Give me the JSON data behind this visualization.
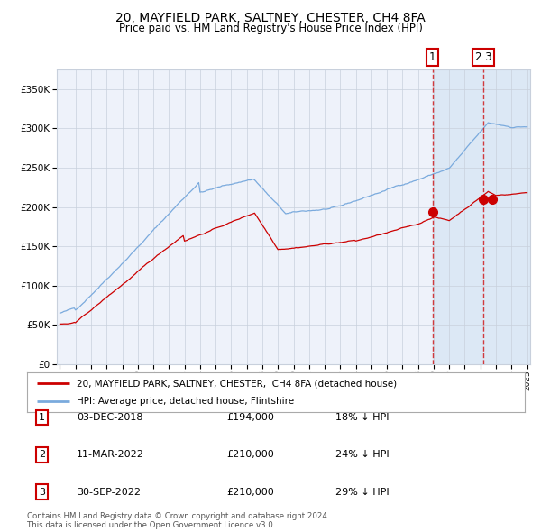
{
  "title": "20, MAYFIELD PARK, SALTNEY, CHESTER, CH4 8FA",
  "subtitle": "Price paid vs. HM Land Registry's House Price Index (HPI)",
  "legend_line1": "20, MAYFIELD PARK, SALTNEY, CHESTER,  CH4 8FA (detached house)",
  "legend_line2": "HPI: Average price, detached house, Flintshire",
  "footer1": "Contains HM Land Registry data © Crown copyright and database right 2024.",
  "footer2": "This data is licensed under the Open Government Licence v3.0.",
  "transactions": [
    {
      "num": "1",
      "date": "03-DEC-2018",
      "price": "£194,000",
      "pct": "18% ↓ HPI",
      "year": 2018.92
    },
    {
      "num": "2",
      "date": "11-MAR-2022",
      "price": "£210,000",
      "pct": "24% ↓ HPI",
      "year": 2022.19
    },
    {
      "num": "3",
      "date": "30-SEP-2022",
      "price": "£210,000",
      "pct": "29% ↓ HPI",
      "year": 2022.75
    }
  ],
  "trans_prices": [
    194000,
    210000,
    210000
  ],
  "vline1_year": 2018.92,
  "vline23_year": 2022.19,
  "hpi_color": "#7aaadd",
  "price_color": "#cc0000",
  "bg_color": "#ffffff",
  "plot_bg_color": "#eef2fa",
  "shade_color": "#dce8f5",
  "grid_color": "#c8d0dc",
  "ylim_min": 0,
  "ylim_max": 375000,
  "yticks": [
    0,
    50000,
    100000,
    150000,
    200000,
    250000,
    300000,
    350000
  ],
  "xstart_year": 1995,
  "xend_year": 2025
}
